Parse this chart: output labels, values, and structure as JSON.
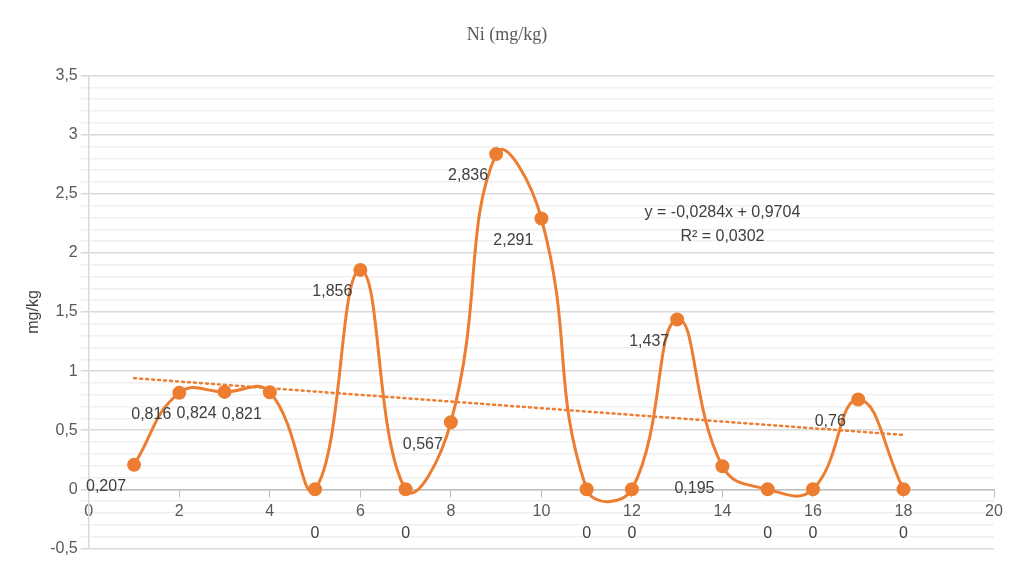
{
  "chart_data": {
    "type": "line",
    "title": "Ni (mg/kg)",
    "ylabel": "mg/kg",
    "xlim": [
      0,
      20
    ],
    "xticks": [
      0,
      2,
      4,
      6,
      8,
      10,
      12,
      14,
      16,
      18,
      20
    ],
    "ylim": [
      -0.5,
      3.5
    ],
    "yticks": [
      {
        "value": -0.5,
        "label": "-0,5"
      },
      {
        "value": -0.4,
        "label": null
      },
      {
        "value": -0.3,
        "label": null
      },
      {
        "value": -0.2,
        "label": null
      },
      {
        "value": -0.1,
        "label": null
      },
      0,
      {
        "value": 0.1,
        "label": null
      },
      {
        "value": 0.2,
        "label": null
      },
      {
        "value": 0.3,
        "label": null
      },
      {
        "value": 0.4,
        "label": null
      },
      {
        "value": 0.5,
        "label": "0,5"
      },
      {
        "value": 0.6,
        "label": null
      },
      {
        "value": 0.7,
        "label": null
      },
      {
        "value": 0.8,
        "label": null
      },
      {
        "value": 0.9,
        "label": null
      },
      1,
      {
        "value": 1.1,
        "label": null
      },
      {
        "value": 1.2,
        "label": null
      },
      {
        "value": 1.3,
        "label": null
      },
      {
        "value": 1.4,
        "label": null
      },
      {
        "value": 1.5,
        "label": "1,5"
      },
      {
        "value": 1.6,
        "label": null
      },
      {
        "value": 1.7,
        "label": null
      },
      {
        "value": 1.8,
        "label": null
      },
      {
        "value": 1.9,
        "label": null
      },
      2,
      {
        "value": 2.1,
        "label": null
      },
      {
        "value": 2.2,
        "label": null
      },
      {
        "value": 2.3,
        "label": null
      },
      {
        "value": 2.4,
        "label": null
      },
      {
        "value": 2.5,
        "label": "2,5"
      },
      {
        "value": 2.6,
        "label": null
      },
      {
        "value": 2.7,
        "label": null
      },
      {
        "value": 2.8,
        "label": null
      },
      {
        "value": 2.9,
        "label": null
      },
      3,
      {
        "value": 3.1,
        "label": null
      },
      {
        "value": 3.2,
        "label": null
      },
      {
        "value": 3.3,
        "label": null
      },
      {
        "value": 3.4,
        "label": null
      },
      {
        "value": 3.5,
        "label": "3,5"
      }
    ],
    "grid": "y",
    "marker": "circle",
    "line_style": "solid",
    "series": [
      {
        "color": "#ed7d31",
        "x": [
          1,
          2,
          3,
          4,
          5,
          6,
          7,
          8,
          9,
          10,
          11,
          12,
          13,
          14,
          15,
          16,
          17,
          18
        ],
        "values": [
          0.207,
          0.816,
          0.824,
          0.821,
          0,
          1.856,
          0,
          0.567,
          2.836,
          2.291,
          0,
          0,
          1.437,
          0.195,
          0,
          0,
          0.76,
          0
        ],
        "value_labels": [
          "0,207",
          "0,816",
          "0,824",
          "0,821",
          "0",
          "1,856",
          "0",
          "0,567",
          "2,836",
          "2,291",
          "0",
          "0",
          "1,437",
          "0,195",
          "0",
          "0",
          "0,76",
          "0"
        ]
      },
      {
        "type": "line",
        "color": "#ed7d31",
        "x": [
          1,
          18
        ],
        "values": [
          0.94,
          0.46
        ],
        "marker": "none",
        "line_style": "dotted"
      }
    ],
    "annotations": [
      "y = -0,0284x + 0,9704",
      "R² = 0,0302"
    ]
  }
}
